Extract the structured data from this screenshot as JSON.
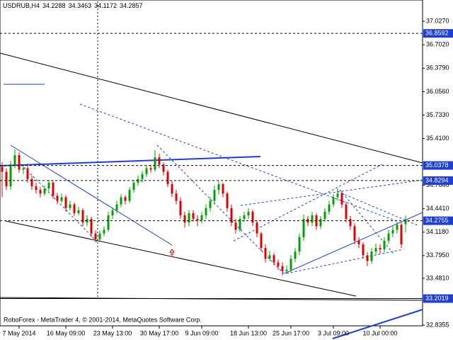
{
  "chart_data": {
    "type": "candlestick",
    "symbol": "USDRUB,H4",
    "footer": "RoboForex - MetaTrader 4, © 2001-2014, MetaQuotes Software Corp.",
    "up_color": "#00a000",
    "down_color": "#e00000",
    "ylim": [
      32.826,
      37.32
    ],
    "yticks": [
      {
        "value": 37.027,
        "label": "37.0270"
      },
      {
        "value": 36.702,
        "label": "36.7020"
      },
      {
        "value": 36.379,
        "label": "36.3790"
      },
      {
        "value": 36.056,
        "label": "36.0560"
      },
      {
        "value": 35.733,
        "label": "35.7330"
      },
      {
        "value": 35.41,
        "label": "35.4100"
      },
      {
        "value": 34.764,
        "label": "34.7640"
      },
      {
        "value": 34.441,
        "label": "34.4410"
      },
      {
        "value": 34.118,
        "label": "34.1180"
      },
      {
        "value": 33.795,
        "label": "33.7950"
      },
      {
        "value": 33.481,
        "label": "33.4810"
      },
      32.8355
    ],
    "levels": [
      {
        "price": 36.8592,
        "style": "dashed"
      },
      {
        "price": 35.0378,
        "style": "dashed"
      },
      {
        "price": 34.8294,
        "style": "dashed"
      },
      {
        "price": 34.2755,
        "style": "dashed"
      },
      {
        "price": 33.2019,
        "style": "solid"
      }
    ],
    "categories": [
      null,
      null,
      null,
      null,
      "7 May 2014",
      null,
      null,
      null,
      null,
      null,
      null,
      null,
      null,
      null,
      null,
      "16 May 09:00",
      null,
      null,
      null,
      null,
      null,
      null,
      null,
      null,
      null,
      null,
      "23 May 13:00",
      null,
      null,
      null,
      null,
      null,
      null,
      null,
      null,
      null,
      null,
      "30 May 17:00",
      null,
      null,
      null,
      null,
      null,
      null,
      null,
      null,
      null,
      "9 Jun 09:00",
      null,
      null,
      null,
      null,
      null,
      null,
      null,
      null,
      null,
      null,
      "18 Jun 13:00",
      null,
      null,
      null,
      null,
      null,
      null,
      null,
      null,
      null,
      "25 Jun 17:00",
      null,
      null,
      null,
      null,
      null,
      null,
      null,
      null,
      null,
      "3 Jul 09:00",
      null,
      null,
      null,
      null,
      null,
      null,
      null,
      null,
      null,
      null,
      "10 Jul 00:00",
      null,
      null,
      null,
      null,
      null,
      null
    ],
    "candles": [
      [
        35.02,
        35.08,
        34.6,
        34.95
      ],
      [
        34.95,
        35.0,
        34.7,
        34.75
      ],
      [
        34.75,
        35.1,
        34.7,
        35.05
      ],
      [
        35.05,
        35.26,
        35.0,
        35.18
      ],
      [
        35.18,
        35.22,
        34.94,
        34.98
      ],
      [
        34.98,
        35.04,
        34.92,
        35.0
      ],
      [
        35.0,
        35.03,
        34.8,
        34.85
      ],
      [
        34.85,
        34.9,
        34.7,
        34.75
      ],
      [
        34.75,
        34.8,
        34.65,
        34.7
      ],
      [
        34.7,
        34.74,
        34.6,
        34.65
      ],
      [
        34.65,
        34.76,
        34.62,
        34.72
      ],
      [
        34.72,
        34.84,
        34.68,
        34.8
      ],
      [
        34.8,
        34.83,
        34.58,
        34.62
      ],
      [
        34.62,
        34.66,
        34.5,
        34.55
      ],
      [
        34.55,
        34.65,
        34.52,
        34.6
      ],
      [
        34.6,
        34.63,
        34.4,
        34.45
      ],
      [
        34.45,
        34.55,
        34.42,
        34.5
      ],
      [
        34.5,
        34.53,
        34.34,
        34.38
      ],
      [
        34.38,
        34.47,
        34.35,
        34.42
      ],
      [
        34.42,
        34.45,
        34.2,
        34.25
      ],
      [
        34.25,
        34.35,
        34.2,
        34.3
      ],
      [
        34.3,
        34.33,
        34.05,
        34.1
      ],
      [
        34.1,
        34.14,
        33.98,
        34.02
      ],
      [
        34.02,
        34.14,
        34.0,
        34.1
      ],
      [
        34.1,
        34.2,
        34.06,
        34.15
      ],
      [
        34.15,
        34.4,
        34.12,
        34.35
      ],
      [
        34.35,
        34.46,
        34.3,
        34.42
      ],
      [
        34.42,
        34.55,
        34.38,
        34.5
      ],
      [
        34.5,
        34.64,
        34.46,
        34.6
      ],
      [
        34.6,
        34.63,
        34.5,
        34.55
      ],
      [
        34.55,
        34.74,
        34.52,
        34.7
      ],
      [
        34.7,
        34.84,
        34.66,
        34.8
      ],
      [
        34.8,
        34.9,
        34.76,
        34.85
      ],
      [
        34.85,
        34.96,
        34.8,
        34.92
      ],
      [
        34.92,
        35.04,
        34.88,
        35.0
      ],
      [
        35.0,
        35.05,
        34.94,
        34.98
      ],
      [
        34.98,
        35.25,
        34.95,
        35.15
      ],
      [
        35.15,
        35.2,
        35.0,
        35.05
      ],
      [
        35.05,
        35.08,
        34.9,
        34.95
      ],
      [
        34.95,
        34.98,
        34.74,
        34.78
      ],
      [
        34.78,
        34.82,
        34.6,
        34.65
      ],
      [
        34.65,
        34.7,
        34.5,
        34.55
      ],
      [
        34.55,
        34.6,
        34.3,
        34.35
      ],
      [
        34.35,
        34.4,
        34.18,
        34.25
      ],
      [
        34.25,
        34.42,
        34.2,
        34.38
      ],
      [
        34.38,
        34.42,
        34.26,
        34.3
      ],
      [
        34.3,
        34.35,
        34.2,
        34.28
      ],
      [
        34.28,
        34.4,
        34.24,
        34.35
      ],
      [
        34.35,
        34.5,
        34.3,
        34.45
      ],
      [
        34.45,
        34.6,
        34.4,
        34.55
      ],
      [
        34.55,
        34.76,
        34.5,
        34.7
      ],
      [
        34.7,
        34.82,
        34.64,
        34.78
      ],
      [
        34.78,
        34.8,
        34.6,
        34.65
      ],
      [
        34.65,
        34.68,
        34.4,
        34.45
      ],
      [
        34.45,
        34.5,
        34.2,
        34.25
      ],
      [
        34.25,
        34.3,
        34.1,
        34.15
      ],
      [
        34.15,
        34.34,
        34.12,
        34.3
      ],
      [
        34.3,
        34.4,
        34.26,
        34.35
      ],
      [
        34.35,
        34.45,
        34.3,
        34.4
      ],
      [
        34.4,
        34.43,
        34.2,
        34.25
      ],
      [
        34.25,
        34.28,
        34.05,
        34.1
      ],
      [
        34.1,
        34.12,
        33.85,
        33.9
      ],
      [
        33.9,
        33.95,
        33.7,
        33.75
      ],
      [
        33.75,
        33.86,
        33.72,
        33.8
      ],
      [
        33.8,
        33.83,
        33.66,
        33.7
      ],
      [
        33.7,
        33.74,
        33.6,
        33.65
      ],
      [
        33.65,
        33.7,
        33.52,
        33.58
      ],
      [
        33.58,
        33.66,
        33.54,
        33.6
      ],
      [
        33.6,
        33.8,
        33.56,
        33.75
      ],
      [
        33.75,
        33.9,
        33.7,
        33.85
      ],
      [
        33.85,
        34.1,
        33.8,
        34.05
      ],
      [
        34.05,
        34.36,
        34.0,
        34.3
      ],
      [
        34.3,
        34.34,
        34.2,
        34.25
      ],
      [
        34.25,
        34.4,
        34.2,
        34.35
      ],
      [
        34.35,
        34.38,
        34.15,
        34.2
      ],
      [
        34.2,
        34.34,
        34.16,
        34.3
      ],
      [
        34.3,
        34.45,
        34.26,
        34.4
      ],
      [
        34.4,
        34.55,
        34.36,
        34.5
      ],
      [
        34.5,
        34.64,
        34.46,
        34.6
      ],
      [
        34.6,
        34.72,
        34.55,
        34.65
      ],
      [
        34.65,
        34.68,
        34.45,
        34.5
      ],
      [
        34.5,
        34.54,
        34.25,
        34.3
      ],
      [
        34.3,
        34.34,
        34.15,
        34.2
      ],
      [
        34.2,
        34.24,
        33.95,
        34.0
      ],
      [
        34.0,
        34.05,
        33.9,
        33.95
      ],
      [
        33.95,
        33.98,
        33.75,
        33.8
      ],
      [
        33.8,
        33.84,
        33.65,
        33.72
      ],
      [
        33.72,
        33.9,
        33.68,
        33.85
      ],
      [
        33.85,
        33.96,
        33.8,
        33.9
      ],
      [
        33.9,
        33.95,
        33.82,
        33.88
      ],
      [
        33.88,
        34.05,
        33.84,
        34.0
      ],
      [
        34.0,
        34.15,
        33.96,
        34.1
      ],
      [
        34.1,
        34.2,
        34.05,
        34.15
      ],
      [
        34.15,
        34.26,
        34.1,
        34.22
      ],
      [
        34.22,
        34.25,
        33.9,
        33.95
      ],
      [
        34.2288,
        34.3463,
        34.1172,
        34.2857
      ]
    ]
  }
}
